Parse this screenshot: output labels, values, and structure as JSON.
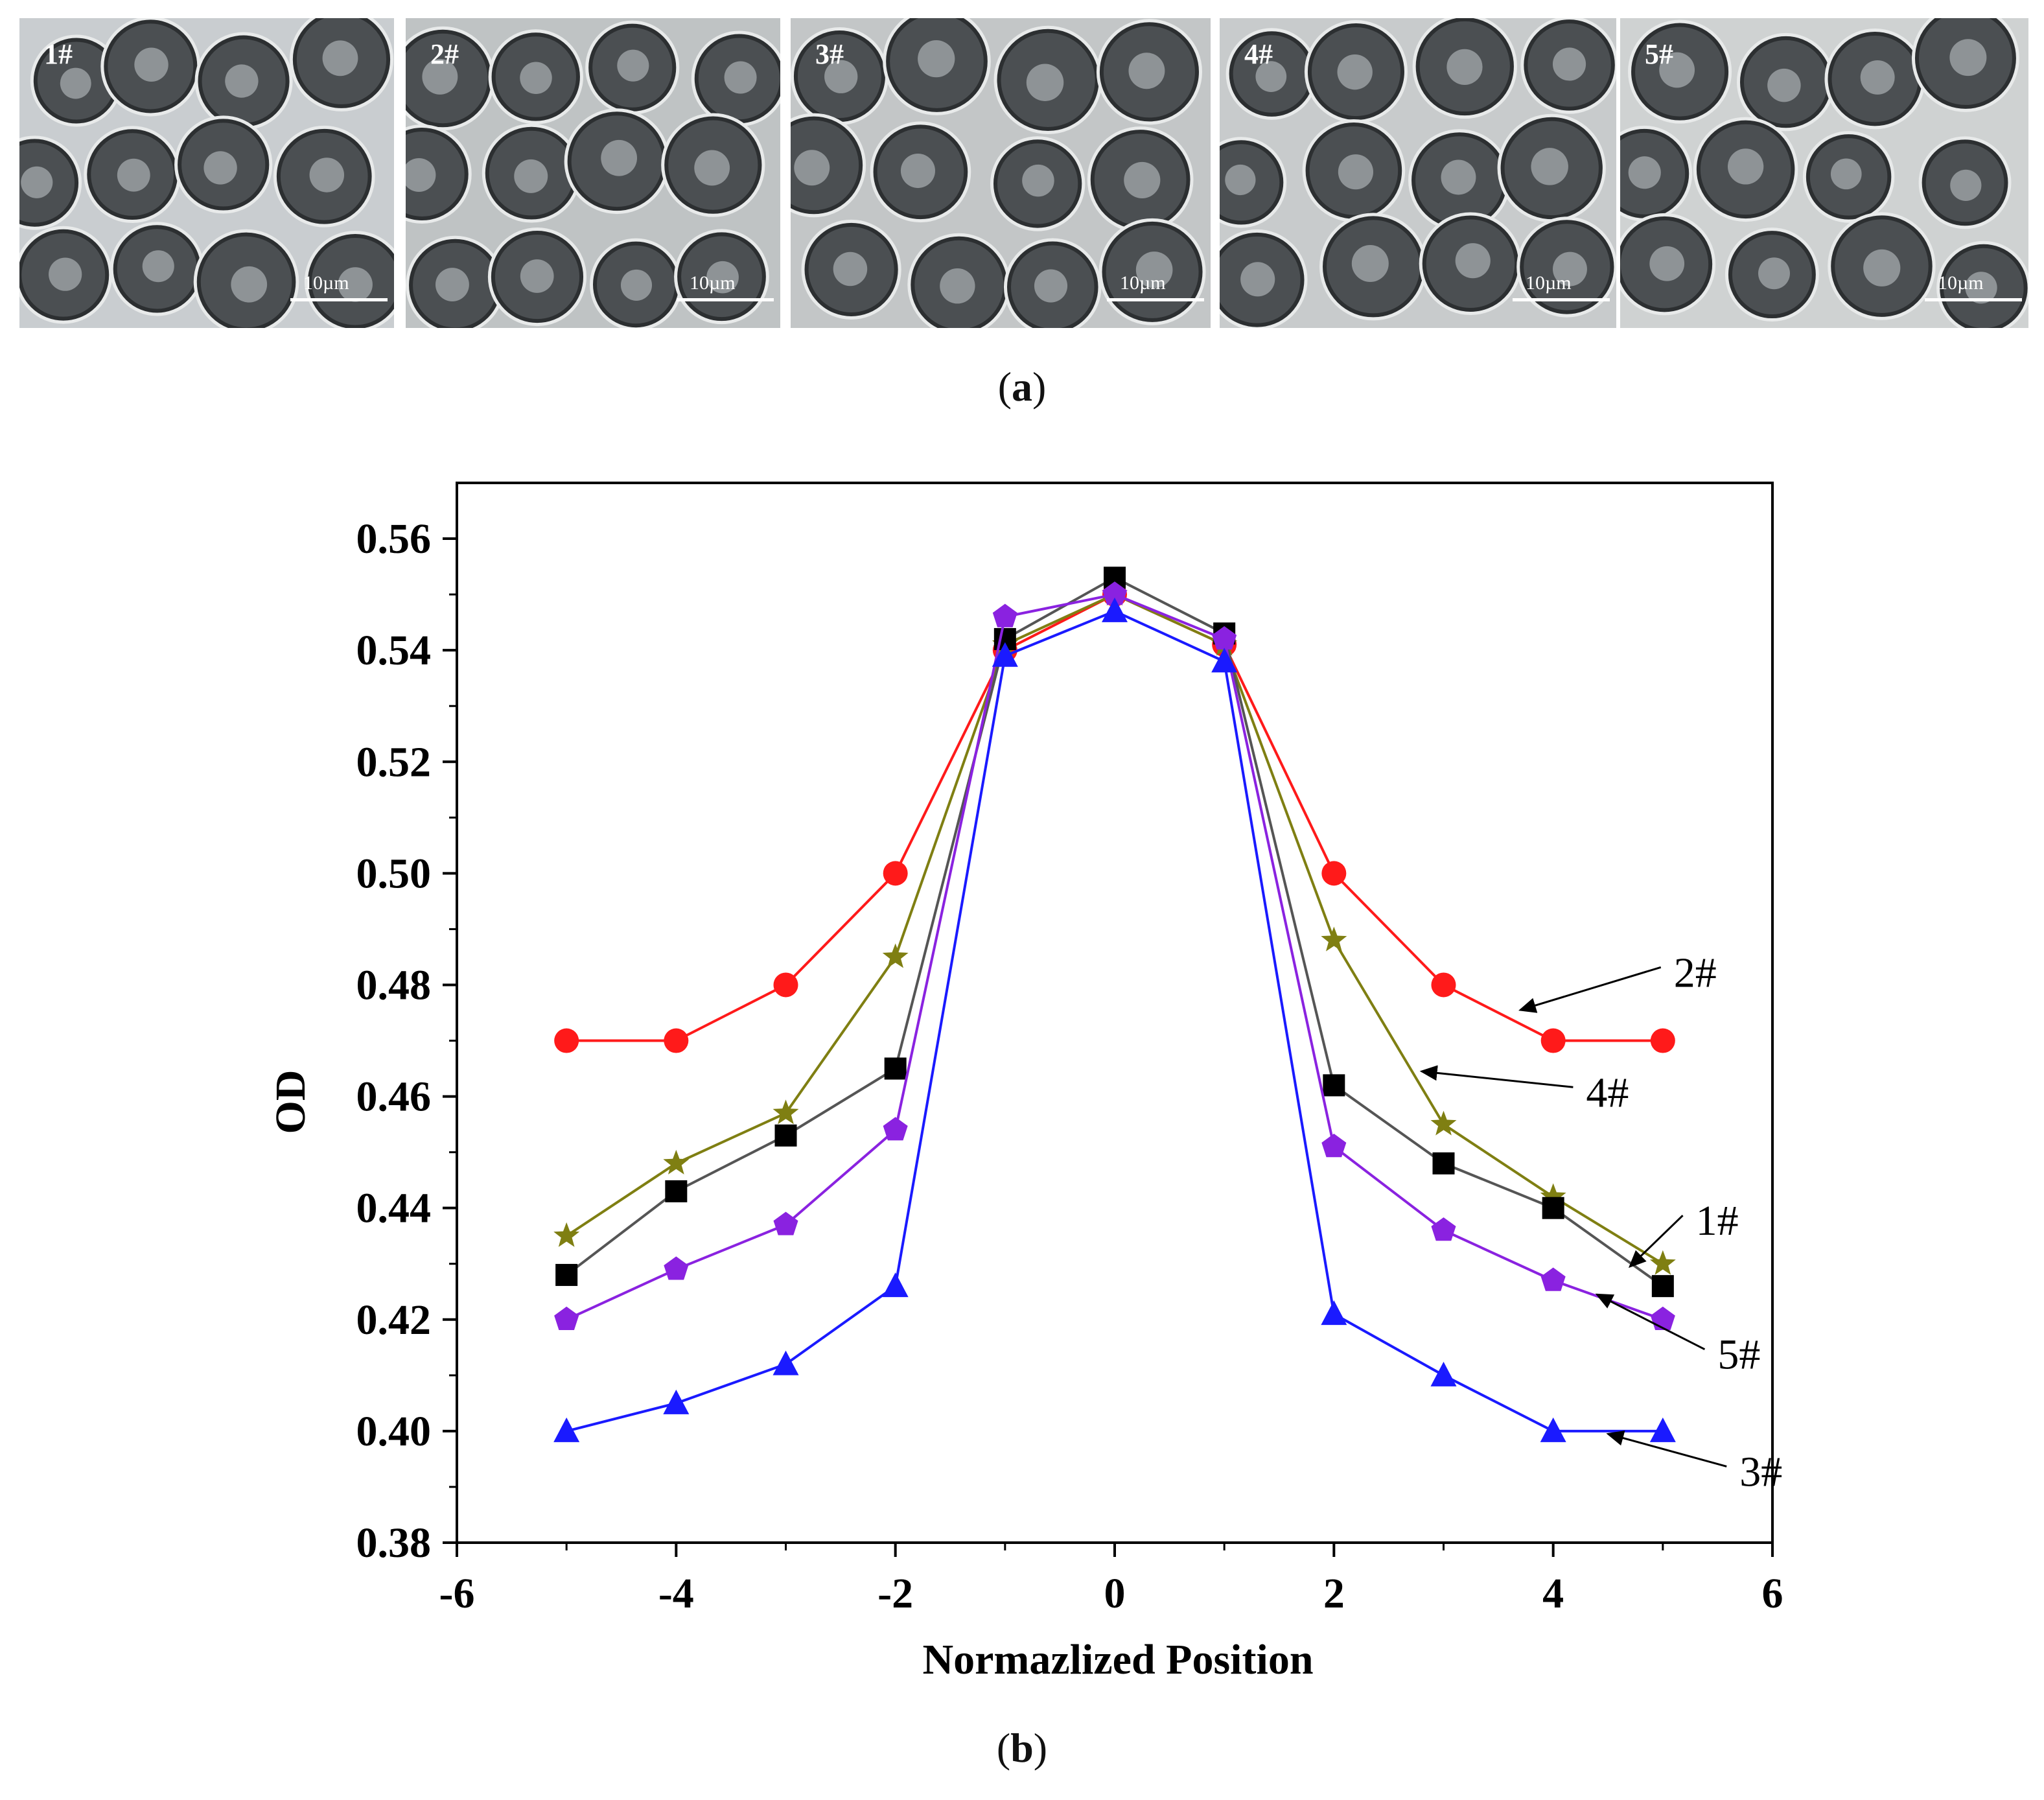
{
  "figure": {
    "caption_a_letter": "a",
    "caption_b_letter": "b"
  },
  "panels": [
    {
      "label": "1#",
      "scale_text": "10µm",
      "tone": "#c9cdd0"
    },
    {
      "label": "2#",
      "scale_text": "10µm",
      "tone": "#bfc3c4"
    },
    {
      "label": "3#",
      "scale_text": "10µm",
      "tone": "#c3c6c7"
    },
    {
      "label": "4#",
      "scale_text": "10µm",
      "tone": "#c8cbcc"
    },
    {
      "label": "5#",
      "scale_text": "10µm",
      "tone": "#cfd2d2"
    }
  ],
  "chart_data": {
    "type": "line",
    "xlabel": "Normazlized Position",
    "ylabel": "OD",
    "xlim": [
      -6,
      6
    ],
    "ylim": [
      0.38,
      0.57
    ],
    "xticks": [
      -6,
      -4,
      -2,
      0,
      2,
      4,
      6
    ],
    "yticks": [
      0.38,
      0.4,
      0.42,
      0.44,
      0.46,
      0.48,
      0.5,
      0.52,
      0.54,
      0.56
    ],
    "x": [
      -5,
      -4,
      -3,
      -2,
      -1,
      0,
      1,
      2,
      3,
      4,
      5
    ],
    "series": [
      {
        "name": "1#",
        "color": "#000000",
        "line_color": "#555555",
        "marker": "square",
        "values": [
          0.428,
          0.443,
          0.453,
          0.465,
          0.542,
          0.553,
          0.543,
          0.462,
          0.448,
          0.44,
          0.426
        ]
      },
      {
        "name": "2#",
        "color": "#ff1a1a",
        "line_color": "#ff1a1a",
        "marker": "circle",
        "values": [
          0.47,
          0.47,
          0.48,
          0.5,
          0.54,
          0.55,
          0.541,
          0.5,
          0.48,
          0.47,
          0.47
        ]
      },
      {
        "name": "3#",
        "color": "#1a1aff",
        "line_color": "#1a1aff",
        "marker": "triangle",
        "values": [
          0.4,
          0.405,
          0.412,
          0.426,
          0.539,
          0.547,
          0.538,
          0.421,
          0.41,
          0.4,
          0.4
        ]
      },
      {
        "name": "4#",
        "color": "#7f7f12",
        "line_color": "#7f7f12",
        "marker": "star",
        "values": [
          0.435,
          0.448,
          0.457,
          0.485,
          0.541,
          0.55,
          0.541,
          0.488,
          0.455,
          0.442,
          0.43
        ]
      },
      {
        "name": "5#",
        "color": "#8a22e0",
        "line_color": "#8a22e0",
        "marker": "pentagon",
        "values": [
          0.42,
          0.429,
          0.437,
          0.454,
          0.546,
          0.55,
          0.542,
          0.451,
          0.436,
          0.427,
          0.42
        ]
      }
    ],
    "annotations": [
      {
        "text": "2#",
        "label_at": [
          5.1,
          0.482
        ],
        "arrow_to": [
          3.7,
          0.4755
        ]
      },
      {
        "text": "4#",
        "label_at": [
          4.3,
          0.4605
        ],
        "arrow_to": [
          2.8,
          0.4645
        ]
      },
      {
        "text": "1#",
        "label_at": [
          5.3,
          0.4375
        ],
        "arrow_to": [
          4.7,
          0.4295
        ]
      },
      {
        "text": "5#",
        "label_at": [
          5.5,
          0.4135
        ],
        "arrow_to": [
          4.4,
          0.4245
        ]
      },
      {
        "text": "3#",
        "label_at": [
          5.7,
          0.3925
        ],
        "arrow_to": [
          4.5,
          0.3995
        ]
      }
    ]
  }
}
